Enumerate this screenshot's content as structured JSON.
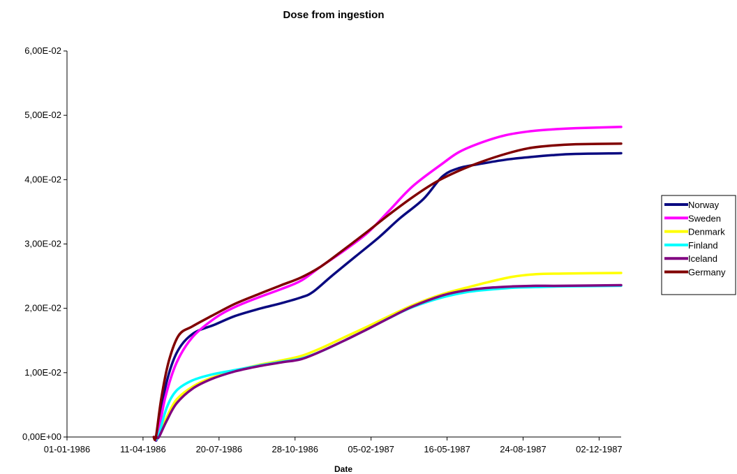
{
  "chart_data": {
    "type": "line",
    "title": "Dose from ingestion",
    "xlabel": "Date",
    "ylabel": "",
    "x_ticks": [
      "01-01-1986",
      "11-04-1986",
      "20-07-1986",
      "28-10-1986",
      "05-02-1987",
      "16-05-1987",
      "24-08-1987",
      "02-12-1987"
    ],
    "y_ticks": [
      "0,00E+00",
      "1,00E-02",
      "2,00E-02",
      "3,00E-02",
      "4,00E-02",
      "5,00E-02",
      "6,00E-02"
    ],
    "ylim": [
      0,
      0.06
    ],
    "xlim": [
      "1986-01-01",
      "1987-12-31"
    ],
    "grid": false,
    "legend_position": "right",
    "series": [
      {
        "name": "Norway",
        "color": "#0a0a80",
        "points": [
          [
            "1986-04-26",
            0.0
          ],
          [
            "1986-04-30",
            0.0
          ],
          [
            "1986-05-10",
            0.0075
          ],
          [
            "1986-05-25",
            0.013
          ],
          [
            "1986-06-15",
            0.016
          ],
          [
            "1986-07-15",
            0.0175
          ],
          [
            "1986-08-10",
            0.0188
          ],
          [
            "1986-09-10",
            0.0199
          ],
          [
            "1986-10-10",
            0.0208
          ],
          [
            "1986-11-05",
            0.0217
          ],
          [
            "1986-11-20",
            0.0225
          ],
          [
            "1986-12-15",
            0.025
          ],
          [
            "1987-01-15",
            0.028
          ],
          [
            "1987-02-15",
            0.031
          ],
          [
            "1987-03-15",
            0.034
          ],
          [
            "1987-04-15",
            0.037
          ],
          [
            "1987-05-10",
            0.0405
          ],
          [
            "1987-06-01",
            0.0418
          ],
          [
            "1987-07-01",
            0.0425
          ],
          [
            "1987-08-01",
            0.0431
          ],
          [
            "1987-09-01",
            0.0435
          ],
          [
            "1987-10-01",
            0.0438
          ],
          [
            "1987-11-01",
            0.044
          ],
          [
            "1987-12-31",
            0.0441
          ]
        ]
      },
      {
        "name": "Sweden",
        "color": "#ff00ff",
        "points": [
          [
            "1986-04-26",
            0.0
          ],
          [
            "1986-04-30",
            0.0
          ],
          [
            "1986-05-10",
            0.006
          ],
          [
            "1986-05-25",
            0.0115
          ],
          [
            "1986-06-15",
            0.0155
          ],
          [
            "1986-07-15",
            0.0185
          ],
          [
            "1986-08-10",
            0.0202
          ],
          [
            "1986-09-10",
            0.0217
          ],
          [
            "1986-10-10",
            0.023
          ],
          [
            "1986-11-05",
            0.0243
          ],
          [
            "1986-12-01",
            0.0265
          ],
          [
            "1987-01-01",
            0.029
          ],
          [
            "1987-02-01",
            0.0318
          ],
          [
            "1987-03-01",
            0.0352
          ],
          [
            "1987-04-01",
            0.039
          ],
          [
            "1987-05-10",
            0.0425
          ],
          [
            "1987-06-01",
            0.0443
          ],
          [
            "1987-07-01",
            0.0458
          ],
          [
            "1987-08-01",
            0.0469
          ],
          [
            "1987-09-01",
            0.0475
          ],
          [
            "1987-10-01",
            0.0478
          ],
          [
            "1987-11-01",
            0.048
          ],
          [
            "1987-12-31",
            0.0482
          ]
        ]
      },
      {
        "name": "Denmark",
        "color": "#ffff00",
        "points": [
          [
            "1986-04-28",
            0.0
          ],
          [
            "1986-05-01",
            0.0
          ],
          [
            "1986-05-12",
            0.003
          ],
          [
            "1986-05-25",
            0.0058
          ],
          [
            "1986-06-15",
            0.0078
          ],
          [
            "1986-07-10",
            0.0092
          ],
          [
            "1986-08-10",
            0.0103
          ],
          [
            "1986-09-10",
            0.0112
          ],
          [
            "1986-10-10",
            0.0119
          ],
          [
            "1986-11-05",
            0.0126
          ],
          [
            "1986-12-01",
            0.0138
          ],
          [
            "1987-01-01",
            0.0155
          ],
          [
            "1987-02-01",
            0.0172
          ],
          [
            "1987-03-01",
            0.0188
          ],
          [
            "1987-04-01",
            0.0205
          ],
          [
            "1987-05-10",
            0.0222
          ],
          [
            "1987-06-10",
            0.0232
          ],
          [
            "1987-07-10",
            0.0241
          ],
          [
            "1987-08-10",
            0.0249
          ],
          [
            "1987-09-10",
            0.0253
          ],
          [
            "1987-10-15",
            0.0254
          ],
          [
            "1987-12-31",
            0.0255
          ]
        ]
      },
      {
        "name": "Finland",
        "color": "#00ffff",
        "points": [
          [
            "1986-04-28",
            0.0
          ],
          [
            "1986-05-01",
            0.0
          ],
          [
            "1986-05-12",
            0.0045
          ],
          [
            "1986-05-25",
            0.0072
          ],
          [
            "1986-06-15",
            0.0088
          ],
          [
            "1986-07-10",
            0.0097
          ],
          [
            "1986-08-10",
            0.0104
          ],
          [
            "1986-09-10",
            0.0111
          ],
          [
            "1986-10-10",
            0.0117
          ],
          [
            "1986-11-05",
            0.0122
          ],
          [
            "1986-12-01",
            0.0133
          ],
          [
            "1987-01-01",
            0.015
          ],
          [
            "1987-02-01",
            0.0168
          ],
          [
            "1987-03-01",
            0.0185
          ],
          [
            "1987-04-01",
            0.0202
          ],
          [
            "1987-05-10",
            0.0217
          ],
          [
            "1987-06-10",
            0.0225
          ],
          [
            "1987-07-10",
            0.0229
          ],
          [
            "1987-08-10",
            0.0232
          ],
          [
            "1987-09-10",
            0.0233
          ],
          [
            "1987-10-15",
            0.0234
          ],
          [
            "1987-12-31",
            0.0235
          ]
        ]
      },
      {
        "name": "Iceland",
        "color": "#800080",
        "points": [
          [
            "1986-04-29",
            0.0
          ],
          [
            "1986-05-02",
            0.0
          ],
          [
            "1986-05-12",
            0.0025
          ],
          [
            "1986-05-25",
            0.0052
          ],
          [
            "1986-06-15",
            0.0075
          ],
          [
            "1986-07-10",
            0.009
          ],
          [
            "1986-08-10",
            0.0102
          ],
          [
            "1986-09-10",
            0.011
          ],
          [
            "1986-10-10",
            0.0116
          ],
          [
            "1986-11-05",
            0.0121
          ],
          [
            "1986-12-01",
            0.0133
          ],
          [
            "1987-01-01",
            0.015
          ],
          [
            "1987-02-01",
            0.0168
          ],
          [
            "1987-03-01",
            0.0185
          ],
          [
            "1987-04-01",
            0.0203
          ],
          [
            "1987-05-10",
            0.022
          ],
          [
            "1987-06-10",
            0.0228
          ],
          [
            "1987-07-10",
            0.0232
          ],
          [
            "1987-08-10",
            0.0234
          ],
          [
            "1987-09-10",
            0.0235
          ],
          [
            "1987-10-15",
            0.0235
          ],
          [
            "1987-12-31",
            0.0236
          ]
        ]
      },
      {
        "name": "Germany",
        "color": "#800000",
        "points": [
          [
            "1986-04-25",
            0.0
          ],
          [
            "1986-04-28",
            0.0
          ],
          [
            "1986-05-05",
            0.006
          ],
          [
            "1986-05-15",
            0.0118
          ],
          [
            "1986-05-28",
            0.0158
          ],
          [
            "1986-06-15",
            0.0172
          ],
          [
            "1986-07-10",
            0.0188
          ],
          [
            "1986-08-10",
            0.0207
          ],
          [
            "1986-09-10",
            0.0222
          ],
          [
            "1986-10-10",
            0.0236
          ],
          [
            "1986-11-05",
            0.0248
          ],
          [
            "1986-12-01",
            0.0265
          ],
          [
            "1987-01-01",
            0.0292
          ],
          [
            "1987-02-01",
            0.032
          ],
          [
            "1987-03-01",
            0.0346
          ],
          [
            "1987-04-01",
            0.0373
          ],
          [
            "1987-05-01",
            0.0396
          ],
          [
            "1987-06-01",
            0.0414
          ],
          [
            "1987-07-01",
            0.0428
          ],
          [
            "1987-08-01",
            0.044
          ],
          [
            "1987-09-01",
            0.0449
          ],
          [
            "1987-10-01",
            0.0453
          ],
          [
            "1987-11-01",
            0.0455
          ],
          [
            "1987-12-31",
            0.0456
          ]
        ]
      }
    ]
  }
}
